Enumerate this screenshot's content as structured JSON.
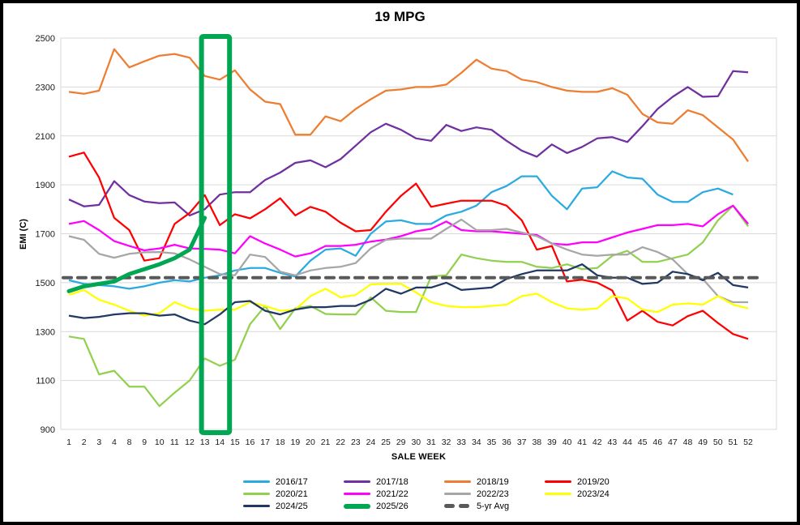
{
  "chart_data": {
    "type": "line",
    "title": "19 MPG",
    "xlabel": "SALE WEEK",
    "ylabel": "EMI (C)",
    "ylim": [
      900,
      2500
    ],
    "yticks": [
      900,
      1100,
      1300,
      1500,
      1700,
      1900,
      2100,
      2300,
      2500
    ],
    "grid": "horizontal",
    "legend_position": "bottom",
    "categories": [
      "1",
      "2",
      "3",
      "4",
      "8",
      "9",
      "10",
      "11",
      "12",
      "13",
      "14",
      "15",
      "16",
      "17",
      "18",
      "19",
      "20",
      "21",
      "22",
      "23",
      "24",
      "25",
      "29",
      "30",
      "31",
      "32",
      "33",
      "34",
      "35",
      "36",
      "37",
      "38",
      "39",
      "40",
      "41",
      "42",
      "43",
      "44",
      "45",
      "46",
      "47",
      "48",
      "49",
      "50",
      "51",
      "52"
    ],
    "series": [
      {
        "name": "2016/17",
        "color": "#29ABE2",
        "style": "normal",
        "values": [
          1510,
          1495,
          1490,
          1485,
          1475,
          1485,
          1500,
          1510,
          1505,
          1520,
          1530,
          1550,
          1560,
          1560,
          1540,
          1525,
          1590,
          1635,
          1640,
          1610,
          1700,
          1750,
          1755,
          1740,
          1740,
          1775,
          1790,
          1815,
          1870,
          1895,
          1935,
          1935,
          1855,
          1800,
          1885,
          1890,
          1955,
          1930,
          1925,
          1860,
          1830,
          1830,
          1870,
          1885,
          1860,
          null
        ]
      },
      {
        "name": "2017/18",
        "color": "#7030A0",
        "style": "normal",
        "values": [
          1840,
          1812,
          1818,
          1915,
          1858,
          1832,
          1825,
          1828,
          1775,
          1800,
          1860,
          1870,
          1870,
          1920,
          1950,
          1990,
          2000,
          1972,
          2005,
          2060,
          2115,
          2150,
          2125,
          2090,
          2080,
          2145,
          2120,
          2135,
          2125,
          2080,
          2040,
          2015,
          2065,
          2030,
          2055,
          2090,
          2095,
          2075,
          2140,
          2210,
          2260,
          2300,
          2260,
          2262,
          2365,
          2360
        ]
      },
      {
        "name": "2018/19",
        "color": "#ED7D31",
        "style": "normal",
        "values": [
          2280,
          2272,
          2285,
          2455,
          2380,
          2405,
          2428,
          2435,
          2420,
          2345,
          2330,
          2368,
          2290,
          2240,
          2230,
          2105,
          2105,
          2180,
          2160,
          2210,
          2250,
          2285,
          2290,
          2300,
          2300,
          2310,
          2358,
          2412,
          2375,
          2365,
          2330,
          2320,
          2300,
          2285,
          2280,
          2280,
          2295,
          2268,
          2190,
          2155,
          2150,
          2205,
          2185,
          2135,
          2085,
          1995
        ]
      },
      {
        "name": "2019/20",
        "color": "#FF0000",
        "style": "normal",
        "values": [
          2015,
          2032,
          1930,
          1765,
          1715,
          1590,
          1600,
          1740,
          1785,
          1858,
          1735,
          1780,
          1763,
          1800,
          1845,
          1775,
          1810,
          1790,
          1745,
          1710,
          1715,
          1790,
          1855,
          1905,
          1810,
          1823,
          1835,
          1835,
          1835,
          1815,
          1755,
          1635,
          1650,
          1505,
          1512,
          1500,
          1468,
          1345,
          1385,
          1340,
          1325,
          1363,
          1385,
          1335,
          1290,
          1270
        ]
      },
      {
        "name": "2020/21",
        "color": "#92D050",
        "style": "normal",
        "values": [
          1280,
          1270,
          1125,
          1140,
          1075,
          1075,
          995,
          1050,
          1100,
          1190,
          1160,
          1185,
          1330,
          1405,
          1310,
          1395,
          1405,
          1372,
          1370,
          1370,
          1440,
          1385,
          1380,
          1380,
          1525,
          1530,
          1615,
          1600,
          1590,
          1585,
          1585,
          1565,
          1560,
          1575,
          1555,
          1560,
          1610,
          1630,
          1585,
          1585,
          1600,
          1615,
          1665,
          1755,
          1815,
          1730
        ]
      },
      {
        "name": "2021/22",
        "color": "#FF00FF",
        "style": "normal",
        "values": [
          1740,
          1752,
          1715,
          1670,
          1650,
          1632,
          1640,
          1655,
          1640,
          1638,
          1635,
          1620,
          1690,
          1660,
          1635,
          1607,
          1620,
          1650,
          1650,
          1655,
          1668,
          1676,
          1690,
          1710,
          1720,
          1750,
          1715,
          1710,
          1710,
          1705,
          1700,
          1695,
          1660,
          1655,
          1665,
          1665,
          1685,
          1705,
          1720,
          1735,
          1735,
          1740,
          1730,
          1780,
          1815,
          1740
        ]
      },
      {
        "name": "2022/23",
        "color": "#A6A6A6",
        "style": "normal",
        "values": [
          1690,
          1675,
          1618,
          1602,
          1618,
          1624,
          1625,
          1620,
          1595,
          1565,
          1535,
          1530,
          1615,
          1605,
          1545,
          1530,
          1550,
          1560,
          1565,
          1580,
          1640,
          1675,
          1680,
          1680,
          1680,
          1720,
          1758,
          1715,
          1715,
          1720,
          1705,
          1690,
          1660,
          1635,
          1615,
          1610,
          1615,
          1615,
          1645,
          1625,
          1595,
          1535,
          1515,
          1445,
          1420,
          1420
        ]
      },
      {
        "name": "2023/24",
        "color": "#FFFF00",
        "style": "normal",
        "values": [
          1450,
          1470,
          1430,
          1410,
          1385,
          1365,
          1375,
          1420,
          1395,
          1385,
          1390,
          1390,
          1420,
          1405,
          1385,
          1390,
          1445,
          1475,
          1440,
          1450,
          1493,
          1495,
          1495,
          1460,
          1420,
          1405,
          1400,
          1400,
          1405,
          1410,
          1445,
          1455,
          1420,
          1395,
          1390,
          1395,
          1445,
          1435,
          1390,
          1380,
          1410,
          1415,
          1410,
          1445,
          1410,
          1395
        ]
      },
      {
        "name": "2024/25",
        "color": "#203864",
        "style": "normal",
        "values": [
          1365,
          1355,
          1360,
          1370,
          1375,
          1375,
          1365,
          1370,
          1345,
          1330,
          1370,
          1420,
          1425,
          1385,
          1370,
          1390,
          1400,
          1400,
          1405,
          1405,
          1430,
          1475,
          1455,
          1480,
          1480,
          1500,
          1470,
          1475,
          1480,
          1515,
          1535,
          1550,
          1550,
          1550,
          1575,
          1530,
          1520,
          1520,
          1495,
          1500,
          1545,
          1535,
          1510,
          1540,
          1490,
          1480
        ]
      },
      {
        "name": "5-yr Avg",
        "color": "#595959",
        "style": "dashed",
        "values": [
          1520,
          1520,
          1520,
          1520,
          1520,
          1520,
          1520,
          1520,
          1520,
          1520,
          1520,
          1520,
          1520,
          1520,
          1520,
          1520,
          1520,
          1520,
          1520,
          1520,
          1520,
          1520,
          1520,
          1520,
          1520,
          1520,
          1520,
          1520,
          1520,
          1520,
          1520,
          1520,
          1520,
          1520,
          1520,
          1520,
          1520,
          1520,
          1520,
          1520,
          1520,
          1520,
          1520,
          1520,
          1520,
          1520
        ]
      },
      {
        "name": "2025/26",
        "color": "#00A651",
        "style": "thick",
        "values": [
          1465,
          1485,
          1495,
          1505,
          1535,
          1555,
          1575,
          1600,
          1635,
          1765,
          null,
          null,
          null,
          null,
          null,
          null,
          null,
          null,
          null,
          null,
          null,
          null,
          null,
          null,
          null,
          null,
          null,
          null,
          null,
          null,
          null,
          null,
          null,
          null,
          null,
          null,
          null,
          null,
          null,
          null,
          null,
          null,
          null,
          null,
          null,
          null
        ]
      }
    ],
    "highlight_box": {
      "color": "#00A651",
      "from_category": "13",
      "to_category": "14"
    }
  },
  "legend": {
    "rows": [
      [
        "2016/17",
        "2017/18",
        "2018/19",
        "2019/20"
      ],
      [
        "2020/21",
        "2021/22",
        "2022/23",
        "2023/24"
      ],
      [
        "2024/25",
        "2025/26",
        "5-yr Avg"
      ]
    ]
  }
}
